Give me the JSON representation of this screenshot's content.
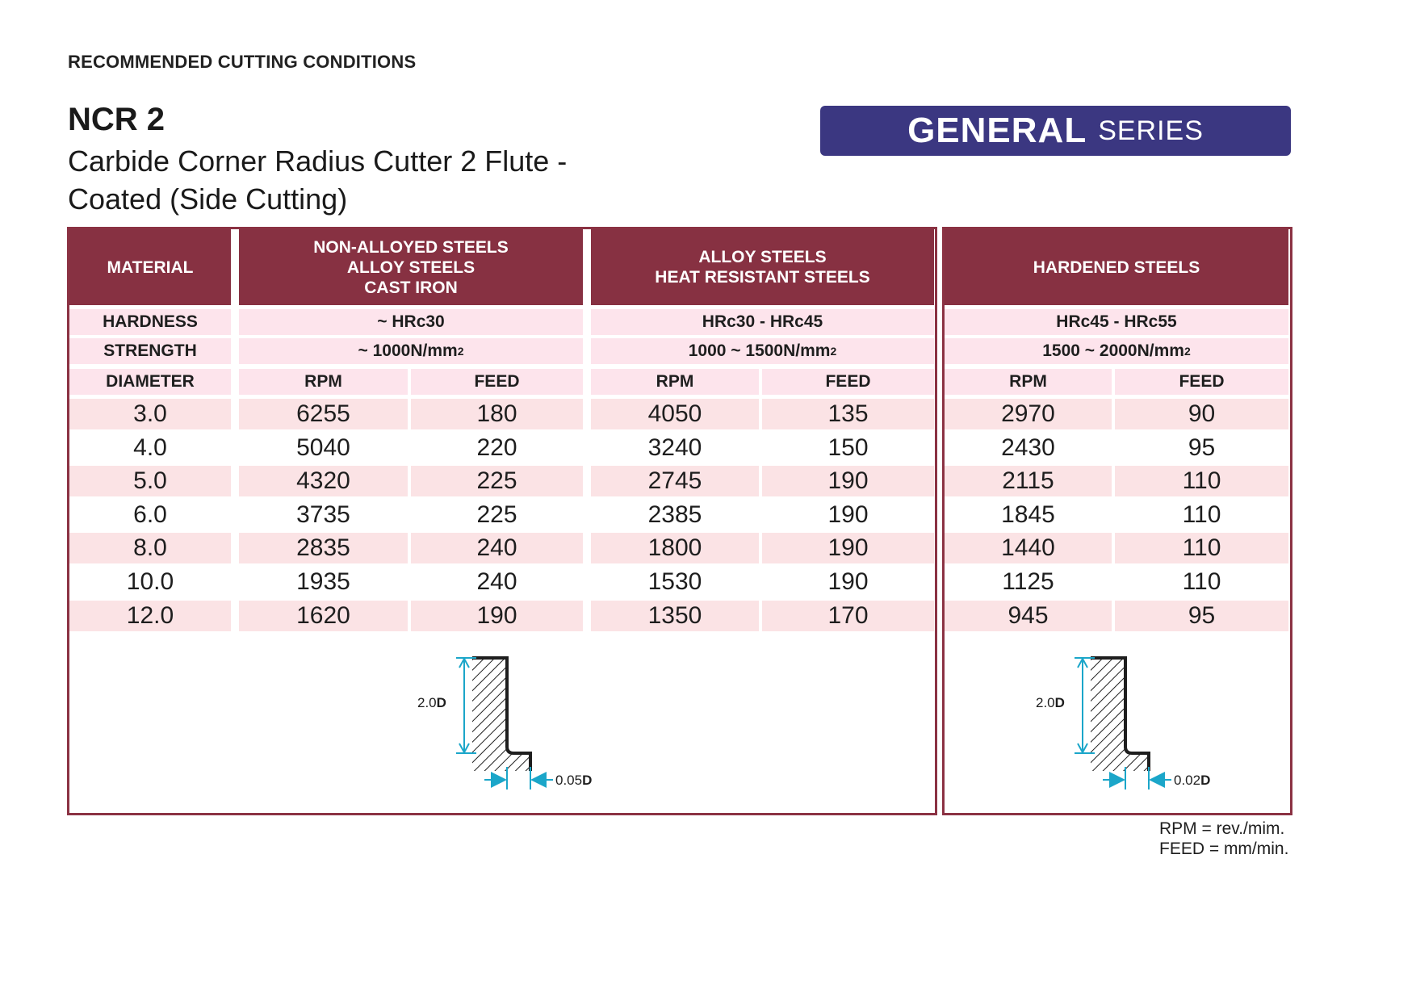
{
  "page": {
    "heading": "RECOMMENDED CUTTING CONDITIONS",
    "code": "NCR 2",
    "description_line1": "Carbide Corner Radius Cutter 2 Flute -",
    "description_line2": "Coated (Side Cutting)",
    "series_bold": "GENERAL",
    "series_light": "SERIES"
  },
  "table": {
    "header_material": "MATERIAL",
    "groups": [
      {
        "name_lines": [
          "NON-ALLOYED STEELS",
          "ALLOY STEELS",
          "CAST IRON"
        ],
        "hardness": "~ HRc30",
        "strength": "~ 1000N/mm",
        "strength_sup": "2"
      },
      {
        "name_lines": [
          "ALLOY STEELS",
          "HEAT RESISTANT STEELS"
        ],
        "hardness": "HRc30 - HRc45",
        "strength": "1000 ~ 1500N/mm",
        "strength_sup": "2"
      },
      {
        "name_lines": [
          "HARDENED STEELS"
        ],
        "hardness": "HRc45 - HRc55",
        "strength": "1500 ~ 2000N/mm",
        "strength_sup": "2"
      }
    ],
    "row_labels": {
      "hardness": "HARDNESS",
      "strength": "STRENGTH",
      "diameter": "DIAMETER"
    },
    "col_rpm": "RPM",
    "col_feed": "FEED",
    "rows": [
      {
        "d": "3.0",
        "v": [
          "6255",
          "180",
          "4050",
          "135",
          "2970",
          "90"
        ]
      },
      {
        "d": "4.0",
        "v": [
          "5040",
          "220",
          "3240",
          "150",
          "2430",
          "95"
        ]
      },
      {
        "d": "5.0",
        "v": [
          "4320",
          "225",
          "2745",
          "190",
          "2115",
          "110"
        ]
      },
      {
        "d": "6.0",
        "v": [
          "3735",
          "225",
          "2385",
          "190",
          "1845",
          "110"
        ]
      },
      {
        "d": "8.0",
        "v": [
          "2835",
          "240",
          "1800",
          "190",
          "1440",
          "110"
        ]
      },
      {
        "d": "10.0",
        "v": [
          "1935",
          "240",
          "1530",
          "190",
          "1125",
          "110"
        ]
      },
      {
        "d": "12.0",
        "v": [
          "1620",
          "190",
          "1350",
          "170",
          "945",
          "95"
        ]
      }
    ]
  },
  "diagrams": [
    {
      "depth_num": "2.0",
      "depth_unit": "D",
      "offset_num": "0.05",
      "offset_unit": "D"
    },
    {
      "depth_num": "2.0",
      "depth_unit": "D",
      "offset_num": "0.02",
      "offset_unit": "D"
    }
  ],
  "legend": {
    "rpm": "RPM = rev./mim.",
    "feed": "FEED = mm/min."
  },
  "colors": {
    "header_bg": "#873142",
    "badge_bg": "#3b3781",
    "row_pink": "#fbe3e5",
    "label_pink": "#fde4ec",
    "dimension": "#1ba6c9"
  }
}
